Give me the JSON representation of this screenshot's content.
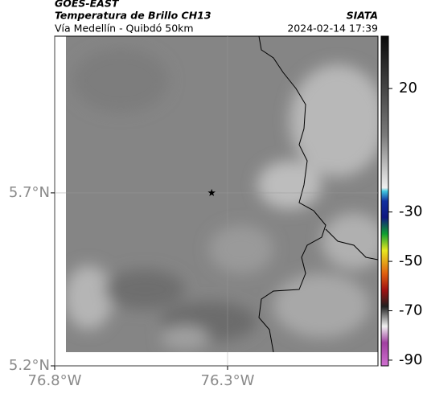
{
  "header": {
    "satellite": "GOES-EAST",
    "product": "Temperatura de Brillo CH13",
    "route": "Vía Medellín - Quibdó 50km",
    "source": "SIATA",
    "timestamp": "2024-02-14 17:39"
  },
  "map": {
    "xlim": [
      -76.8,
      -75.865
    ],
    "ylim": [
      5.2,
      6.153
    ],
    "xticks": [
      {
        "value": -76.8,
        "label": "76.8°W"
      },
      {
        "value": -76.3,
        "label": "76.3°W"
      }
    ],
    "yticks": [
      {
        "value": 5.2,
        "label": "5.2°N"
      },
      {
        "value": 5.7,
        "label": "5.7°N"
      }
    ],
    "grid": true,
    "marker": {
      "lon": -76.346,
      "lat": 5.7
    }
  },
  "colorbar": {
    "lim": [
      -92.3,
      41.2
    ],
    "ticks": [
      20,
      -30,
      -50,
      -70,
      -90
    ]
  }
}
